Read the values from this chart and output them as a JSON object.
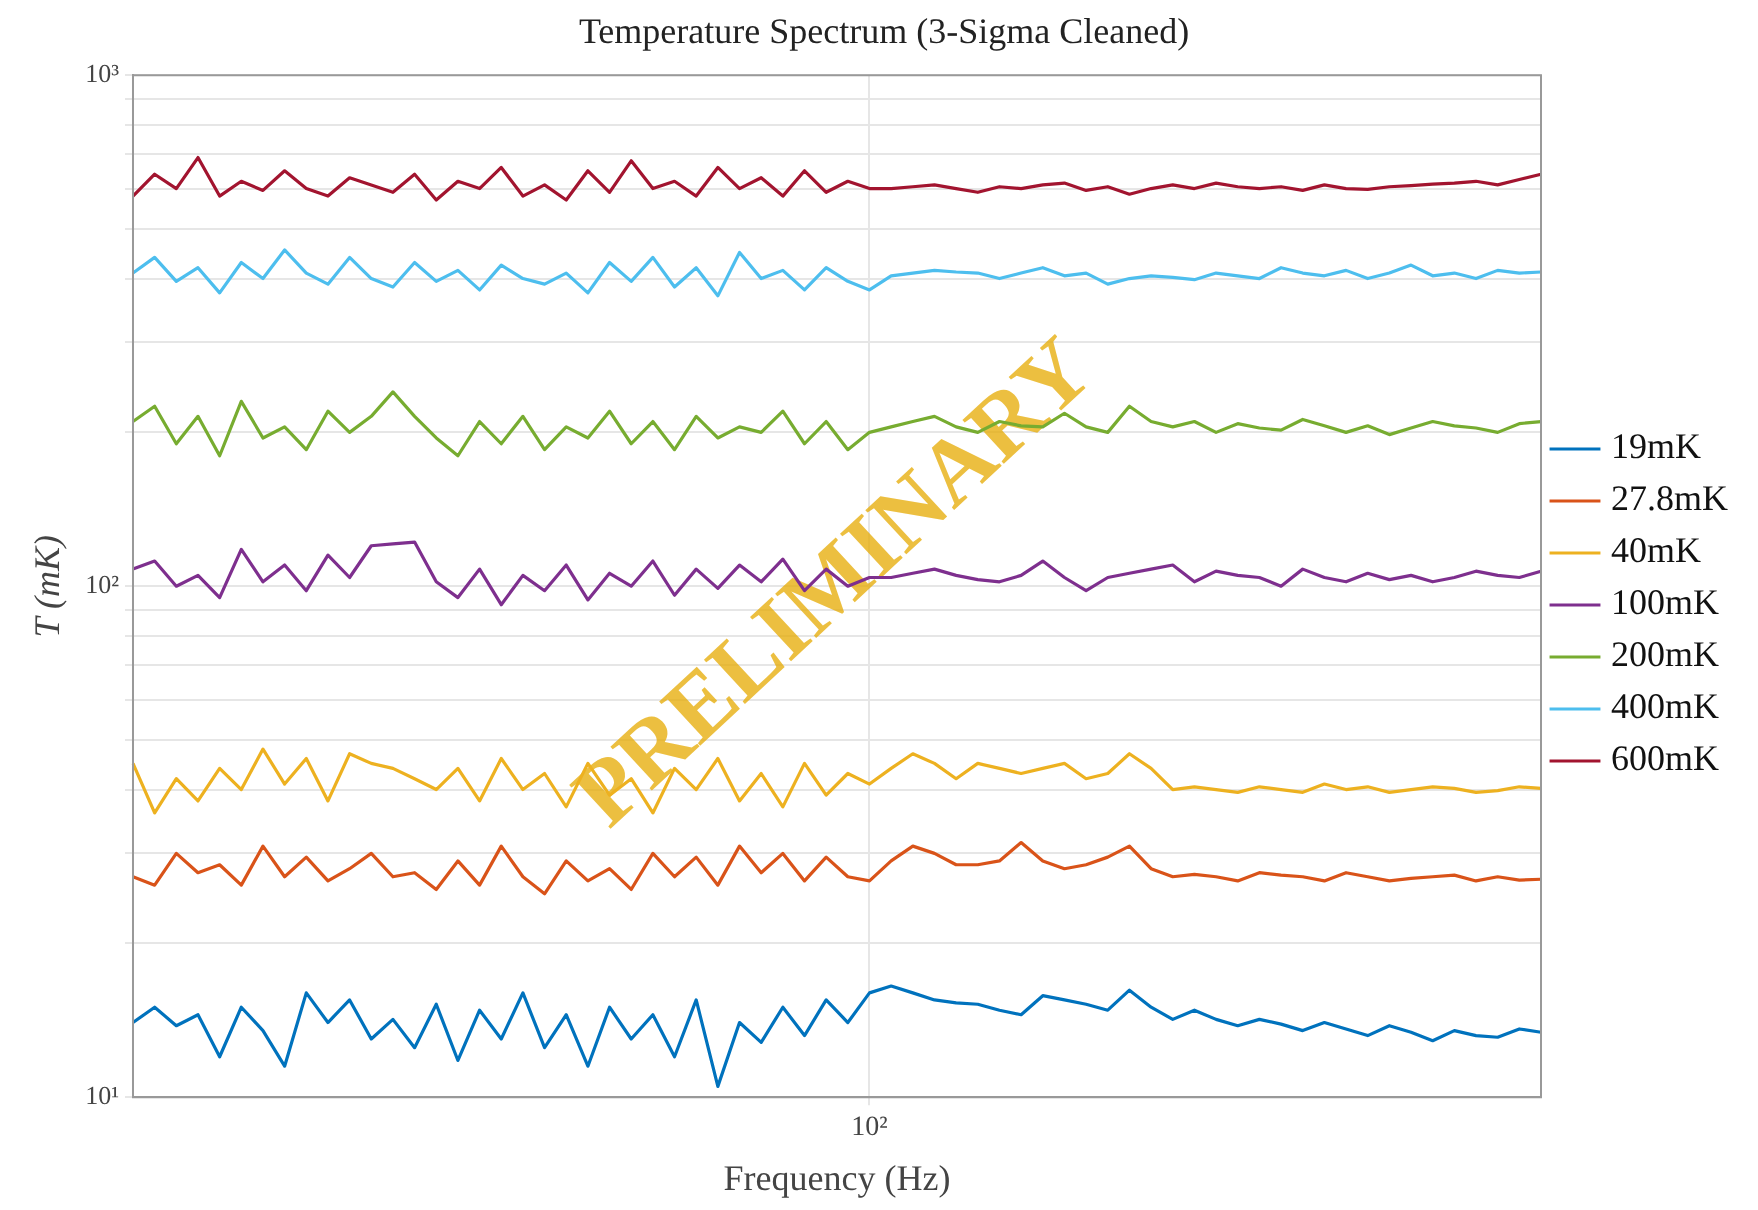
{
  "chart_data": {
    "type": "line",
    "title": "Temperature Spectrum (3-Sigma Cleaned)",
    "xlabel": "Frequency (Hz)",
    "ylabel": "T (mK)",
    "log": "y",
    "grid": true,
    "legend": "right",
    "ylim": [
      10,
      1000
    ],
    "yticks": [
      {
        "value": 10,
        "label": "10¹"
      },
      {
        "value": 20,
        "label": null
      },
      {
        "value": 30,
        "label": null
      },
      {
        "value": 40,
        "label": null
      },
      {
        "value": 50,
        "label": null
      },
      {
        "value": 60,
        "label": null
      },
      {
        "value": 70,
        "label": null
      },
      {
        "value": 80,
        "label": null
      },
      {
        "value": 90,
        "label": null
      },
      {
        "value": 100,
        "label": "10²"
      },
      {
        "value": 200,
        "label": null
      },
      {
        "value": 300,
        "label": null
      },
      {
        "value": 400,
        "label": null
      },
      {
        "value": 500,
        "label": null
      },
      {
        "value": 600,
        "label": null
      },
      {
        "value": 700,
        "label": null
      },
      {
        "value": 800,
        "label": null
      },
      {
        "value": 900,
        "label": null
      },
      {
        "value": 1000,
        "label": "10³"
      }
    ],
    "categories": [
      null,
      null,
      null,
      null,
      null,
      null,
      null,
      null,
      null,
      null,
      null,
      null,
      null,
      null,
      null,
      null,
      null,
      null,
      null,
      null,
      null,
      null,
      null,
      null,
      null,
      null,
      null,
      null,
      null,
      null,
      null,
      null,
      null,
      null,
      "10²",
      null,
      null,
      null,
      null,
      null,
      null,
      null,
      null,
      null,
      null,
      null,
      null,
      null,
      null,
      null,
      null,
      null,
      null,
      null,
      null,
      null,
      null,
      null,
      null,
      null,
      null,
      null,
      null,
      null,
      null,
      null
    ],
    "annotations": [
      "PRELIMINARY"
    ],
    "series": [
      {
        "name": "19mK",
        "color": "#0072bd",
        "values": [
          14,
          15,
          13.8,
          14.5,
          12,
          15,
          13.5,
          11.5,
          16,
          14,
          15.5,
          13,
          14.2,
          12.5,
          15.2,
          11.8,
          14.8,
          13,
          16,
          12.5,
          14.5,
          11.5,
          15,
          13,
          14.5,
          12,
          15.5,
          10.5,
          14,
          12.8,
          15,
          13.2,
          15.5,
          14,
          16,
          16.5,
          16,
          15.5,
          15.3,
          15.2,
          14.8,
          14.5,
          15.8,
          15.5,
          15.2,
          14.8,
          16.2,
          15,
          14.2,
          14.8,
          14.2,
          13.8,
          14.2,
          13.9,
          13.5,
          14,
          13.6,
          13.2,
          13.8,
          13.4,
          12.9,
          13.5,
          13.2,
          13.1,
          13.6,
          13.4
        ]
      },
      {
        "name": "27.8mK",
        "color": "#d95319",
        "values": [
          27,
          26,
          30,
          27.5,
          28.5,
          26,
          31,
          27,
          29.5,
          26.5,
          28,
          30,
          27,
          27.5,
          25.5,
          29,
          26,
          31,
          27,
          25,
          29,
          26.5,
          28,
          25.5,
          30,
          27,
          29.5,
          26,
          31,
          27.5,
          30,
          26.5,
          29.5,
          27,
          26.5,
          29,
          31,
          30,
          28.5,
          28.5,
          29,
          31.5,
          29,
          28,
          28.5,
          29.5,
          31,
          28,
          27,
          27.3,
          27,
          26.5,
          27.5,
          27.2,
          27,
          26.5,
          27.5,
          27,
          26.5,
          26.8,
          27,
          27.2,
          26.5,
          27,
          26.6,
          26.7
        ]
      },
      {
        "name": "40mK",
        "color": "#edb120",
        "values": [
          45,
          36,
          42,
          38,
          44,
          40,
          48,
          41,
          46,
          38,
          47,
          45,
          44,
          42,
          40,
          44,
          38,
          46,
          40,
          43,
          37,
          45,
          39,
          42,
          36,
          44,
          40,
          46,
          38,
          43,
          37,
          45,
          39,
          43,
          41,
          44,
          47,
          45,
          42,
          45,
          44,
          43,
          44,
          45,
          42,
          43,
          47,
          44,
          40,
          40.5,
          40,
          39.5,
          40.5,
          40,
          39.5,
          41,
          40,
          40.5,
          39.5,
          40,
          40.5,
          40.2,
          39.5,
          39.8,
          40.5,
          40.2
        ]
      },
      {
        "name": "100mK",
        "color": "#7e2f8e",
        "values": [
          108,
          112,
          100,
          105,
          95,
          118,
          102,
          110,
          98,
          115,
          104,
          120,
          121,
          122,
          102,
          95,
          108,
          92,
          105,
          98,
          110,
          94,
          106,
          100,
          112,
          96,
          108,
          99,
          110,
          102,
          113,
          98,
          108,
          100,
          104,
          104,
          106,
          108,
          105,
          103,
          102,
          105,
          112,
          104,
          98,
          104,
          106,
          108,
          110,
          102,
          107,
          105,
          104,
          100,
          108,
          104,
          102,
          106,
          103,
          105,
          102,
          104,
          107,
          105,
          104,
          107
        ]
      },
      {
        "name": "200mK",
        "color": "#77ac30",
        "values": [
          210,
          225,
          190,
          215,
          180,
          230,
          195,
          205,
          185,
          220,
          200,
          215,
          240,
          215,
          195,
          180,
          210,
          190,
          215,
          185,
          205,
          195,
          220,
          190,
          210,
          185,
          215,
          195,
          205,
          200,
          220,
          190,
          210,
          185,
          200,
          205,
          210,
          215,
          205,
          200,
          210,
          206,
          205,
          218,
          205,
          200,
          225,
          210,
          205,
          210,
          200,
          208,
          204,
          202,
          212,
          206,
          200,
          206,
          198,
          204,
          210,
          206,
          204,
          200,
          208,
          210
        ]
      },
      {
        "name": "400mK",
        "color": "#4dbeee",
        "values": [
          410,
          440,
          395,
          420,
          375,
          430,
          400,
          455,
          410,
          390,
          440,
          400,
          385,
          430,
          395,
          415,
          380,
          425,
          400,
          390,
          410,
          375,
          430,
          395,
          440,
          385,
          420,
          370,
          450,
          400,
          415,
          380,
          420,
          395,
          380,
          405,
          410,
          415,
          412,
          410,
          400,
          410,
          420,
          405,
          410,
          390,
          400,
          405,
          402,
          398,
          410,
          405,
          400,
          420,
          410,
          405,
          415,
          400,
          410,
          425,
          405,
          410,
          400,
          415,
          410,
          412
        ]
      },
      {
        "name": "600mK",
        "color": "#a2142f",
        "values": [
          580,
          640,
          600,
          690,
          580,
          620,
          595,
          650,
          600,
          580,
          630,
          610,
          590,
          640,
          570,
          620,
          600,
          660,
          580,
          610,
          570,
          650,
          590,
          680,
          600,
          620,
          580,
          660,
          600,
          630,
          580,
          650,
          590,
          620,
          600,
          600,
          605,
          610,
          600,
          590,
          605,
          600,
          610,
          615,
          595,
          605,
          585,
          600,
          610,
          600,
          615,
          605,
          600,
          605,
          595,
          610,
          600,
          598,
          605,
          608,
          612,
          615,
          620,
          610,
          625,
          640
        ]
      }
    ]
  }
}
